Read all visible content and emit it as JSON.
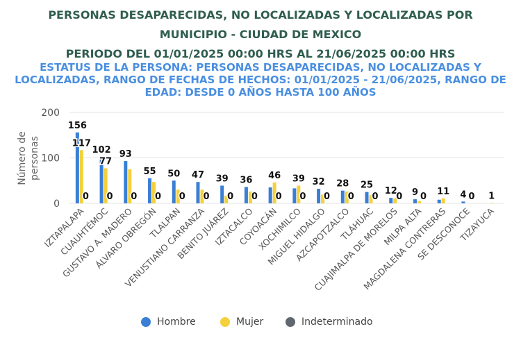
{
  "titles": {
    "line1": "PERSONAS DESAPARECIDAS, NO LOCALIZADAS Y LOCALIZADAS POR",
    "line2": "MUNICIPIO - CIUDAD DE MEXICO",
    "line3": "PERIODO DEL 01/01/2025 00:00 HRS AL 21/06/2025 00:00 HRS",
    "subtitle": "ESTATUS DE LA PERSONA: PERSONAS DESAPARECIDAS, NO LOCALIZADAS Y LOCALIZADAS, RANGO DE FECHAS DE HECHOS: 01/01/2025 - 21/06/2025, RANGO DE EDAD: DESDE 0 AÑOS HASTA 100 AÑOS"
  },
  "chart_data": {
    "type": "bar",
    "ylabel": "Número de personas",
    "ylim": [
      0,
      200
    ],
    "yticks": [
      0,
      100,
      200
    ],
    "categories": [
      "IZTAPALAPA",
      "CUAUHTÉMOC",
      "GUSTAVO A. MADERO",
      "ÁLVARO OBREGÓN",
      "TLALPAN",
      "VENUSTIANO CARRANZA",
      "BENITO JUÁREZ",
      "IZTACALCO",
      "COYOACÁN",
      "XOCHIMILCO",
      "MIGUEL HIDALGO",
      "AZCAPOTZALCO",
      "TLÁHUAC",
      "CUAJIMALPA DE MORELOS",
      "MILPA ALTA",
      "MAGDALENA CONTRERAS",
      "SE DESCONOCE",
      "TIZAYUCA"
    ],
    "series": [
      {
        "name": "Hombre",
        "color": "#3a7fd5",
        "values": [
          156,
          102,
          93,
          55,
          50,
          47,
          39,
          36,
          35,
          33,
          32,
          28,
          25,
          12,
          9,
          8,
          4,
          0
        ]
      },
      {
        "name": "Mujer",
        "color": "#f5d03b",
        "values": [
          117,
          77,
          75,
          47,
          30,
          30,
          17,
          26,
          46,
          39,
          19,
          26,
          18,
          11,
          5,
          11,
          0,
          1
        ]
      },
      {
        "name": "Indeterminado",
        "color": "#5f6770",
        "values": [
          0,
          0,
          0,
          0,
          0,
          0,
          0,
          0,
          0,
          0,
          0,
          0,
          0,
          0,
          0,
          0,
          0,
          0
        ]
      }
    ],
    "data_labels": [
      {
        "category": 0,
        "series": 0,
        "text": "156"
      },
      {
        "category": 0,
        "series": 1,
        "text": "117"
      },
      {
        "category": 0,
        "series": 2,
        "text": "0"
      },
      {
        "category": 1,
        "series": 0,
        "text": "102"
      },
      {
        "category": 1,
        "series": 1,
        "text": "77"
      },
      {
        "category": 1,
        "series": 2,
        "text": "0"
      },
      {
        "category": 2,
        "series": 0,
        "text": "93"
      },
      {
        "category": 2,
        "series": 2,
        "text": "0"
      },
      {
        "category": 3,
        "series": 0,
        "text": "55"
      },
      {
        "category": 3,
        "series": 2,
        "text": "0"
      },
      {
        "category": 4,
        "series": 0,
        "text": "50"
      },
      {
        "category": 4,
        "series": 2,
        "text": "0"
      },
      {
        "category": 5,
        "series": 0,
        "text": "47"
      },
      {
        "category": 5,
        "series": 2,
        "text": "0"
      },
      {
        "category": 6,
        "series": 0,
        "text": "39"
      },
      {
        "category": 6,
        "series": 2,
        "text": "0"
      },
      {
        "category": 7,
        "series": 0,
        "text": "36"
      },
      {
        "category": 7,
        "series": 2,
        "text": "0"
      },
      {
        "category": 8,
        "series": 1,
        "text": "46"
      },
      {
        "category": 8,
        "series": 2,
        "text": "0"
      },
      {
        "category": 9,
        "series": 1,
        "text": "39"
      },
      {
        "category": 9,
        "series": 2,
        "text": "0"
      },
      {
        "category": 10,
        "series": 0,
        "text": "32"
      },
      {
        "category": 10,
        "series": 2,
        "text": "0"
      },
      {
        "category": 11,
        "series": 0,
        "text": "28"
      },
      {
        "category": 11,
        "series": 2,
        "text": "0"
      },
      {
        "category": 12,
        "series": 0,
        "text": "25"
      },
      {
        "category": 12,
        "series": 2,
        "text": "0"
      },
      {
        "category": 13,
        "series": 0,
        "text": "12"
      },
      {
        "category": 13,
        "series": 2,
        "text": "0"
      },
      {
        "category": 14,
        "series": 0,
        "text": "9"
      },
      {
        "category": 14,
        "series": 2,
        "text": "0"
      },
      {
        "category": 15,
        "series": 1,
        "text": "11"
      },
      {
        "category": 16,
        "series": 0,
        "text": "4"
      },
      {
        "category": 16,
        "series": 2,
        "text": "0"
      },
      {
        "category": 17,
        "series": 1,
        "text": "1"
      }
    ],
    "legend": [
      "Hombre",
      "Mujer",
      "Indeterminado"
    ],
    "legend_position": "bottom",
    "grid": true
  }
}
